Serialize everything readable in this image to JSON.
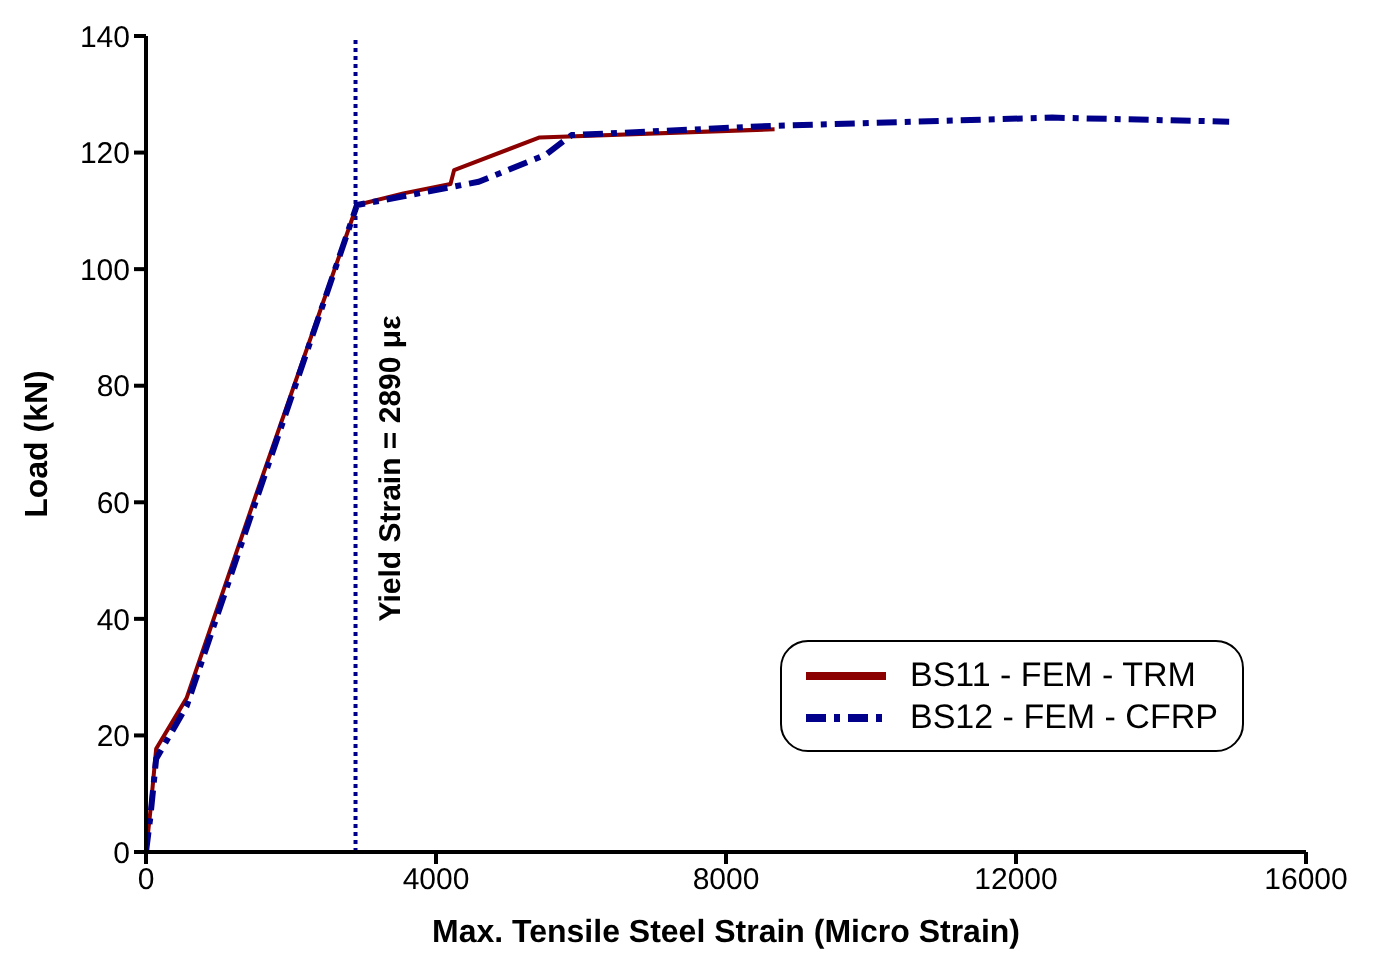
{
  "chart_data": {
    "type": "line",
    "xlabel": "Max. Tensile Steel Strain (Micro Strain)",
    "ylabel": "Load (kN)",
    "xlim": [
      0,
      16000
    ],
    "xticks": [
      0,
      4000,
      8000,
      12000,
      16000
    ],
    "ylim": [
      0,
      140
    ],
    "yticks": [
      0,
      20,
      40,
      60,
      80,
      100,
      120,
      140
    ],
    "legend": "bottom right",
    "marker": "none",
    "series": [
      {
        "name": "BS11 - FEM - TRM",
        "color": "#8b0000",
        "line_style": "solid",
        "x": [
          0,
          60,
          140,
          560,
          1510,
          2910,
          3550,
          4200,
          4250,
          5430,
          8670
        ],
        "values": [
          0,
          7,
          17.7,
          26.4,
          61,
          111,
          113,
          114.6,
          117,
          122.6,
          124
        ]
      },
      {
        "name": "BS12 - FEM - CFRP",
        "color": "#00008b",
        "line_style": "dashed",
        "x": [
          0,
          60,
          140,
          560,
          1510,
          2910,
          3550,
          4590,
          5510,
          5870,
          8670,
          12500,
          14940
        ],
        "values": [
          0,
          6,
          16,
          25,
          60,
          111,
          112.5,
          115,
          119.6,
          123,
          124.6,
          126,
          125.3
        ]
      }
    ],
    "ref_lines": [
      {
        "axis": "x",
        "value": 2890,
        "label": "Yield Strain = 2890 με",
        "color": "#00008b",
        "line_style": "dotted"
      }
    ]
  }
}
